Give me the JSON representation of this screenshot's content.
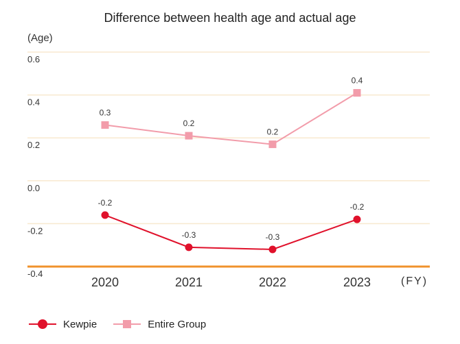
{
  "chart_data": {
    "type": "line",
    "title": "Difference between health age and actual age",
    "ylabel": "(Age)",
    "xlabel": "(FY)",
    "categories": [
      "2020",
      "2021",
      "2022",
      "2023"
    ],
    "ylim": [
      -0.4,
      0.6
    ],
    "yticks": [
      "0.6",
      "0.4",
      "0.2",
      "0.0",
      "-0.2",
      "-0.4"
    ],
    "ytick_values": [
      0.6,
      0.4,
      0.2,
      0.0,
      -0.2,
      -0.4
    ],
    "grid": true,
    "legend_position": "bottom-left",
    "series": [
      {
        "name": "Kewpie",
        "values": [
          -0.16,
          -0.31,
          -0.32,
          -0.18
        ],
        "labels": [
          "-0.2",
          "-0.3",
          "-0.3",
          "-0.2"
        ],
        "color": "#e0112b",
        "marker": "circle"
      },
      {
        "name": "Entire Group",
        "values": [
          0.26,
          0.21,
          0.17,
          0.41
        ],
        "labels": [
          "0.3",
          "0.2",
          "0.2",
          "0.4"
        ],
        "color": "#f29caa",
        "marker": "square"
      }
    ],
    "colors": {
      "grid": "#f8e9cf",
      "axis": "#f0922b"
    }
  }
}
